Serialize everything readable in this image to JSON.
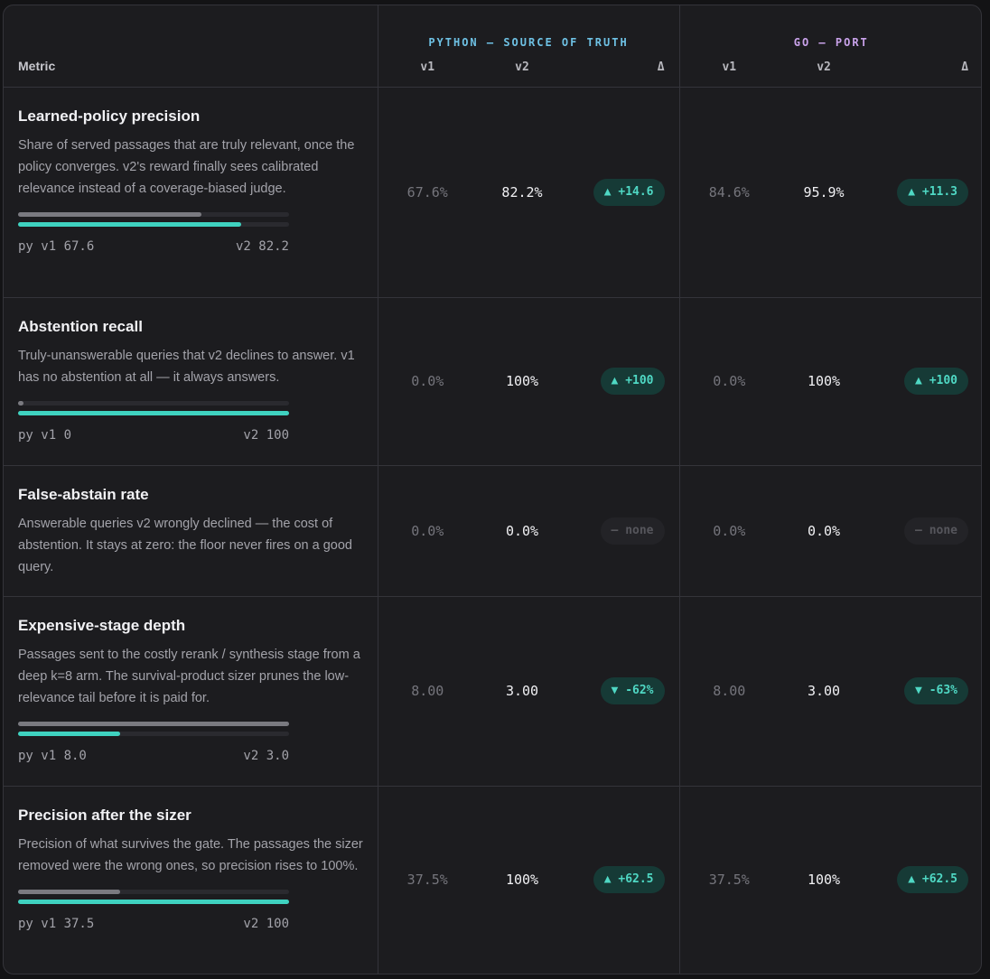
{
  "header": {
    "metric_label": "Metric",
    "python_group": "PYTHON — SOURCE OF TRUTH",
    "go_group": "GO — PORT",
    "v1": "v1",
    "v2": "v2",
    "delta": "Δ"
  },
  "rows": [
    {
      "title": "Learned-policy precision",
      "desc": "Share of served passages that are truly relevant, once the policy converges. v2's reward finally sees calibrated relevance instead of a coverage-biased judge.",
      "has_bars": true,
      "bar_v1_fraction": 0.676,
      "bar_v2_fraction": 0.822,
      "bar_label_left": "py v1 67.6",
      "bar_label_right": "v2 82.2",
      "py_v1": "67.6%",
      "py_v2": "82.2%",
      "py_delta": "▲ +14.6",
      "py_delta_kind": "up",
      "go_v1": "84.6%",
      "go_v2": "95.9%",
      "go_delta": "▲ +11.3",
      "go_delta_kind": "up"
    },
    {
      "title": "Abstention recall",
      "desc": "Truly-unanswerable queries that v2 declines to answer. v1 has no abstention at all — it always answers.",
      "has_bars": true,
      "bar_v1_fraction": 0.0,
      "bar_v2_fraction": 1.0,
      "bar_label_left": "py v1 0",
      "bar_label_right": "v2 100",
      "py_v1": "0.0%",
      "py_v2": "100%",
      "py_delta": "▲ +100",
      "py_delta_kind": "up",
      "go_v1": "0.0%",
      "go_v2": "100%",
      "go_delta": "▲ +100",
      "go_delta_kind": "up"
    },
    {
      "title": "False-abstain rate",
      "desc": "Answerable queries v2 wrongly declined — the cost of abstention. It stays at zero: the floor never fires on a good query.",
      "has_bars": false,
      "py_v1": "0.0%",
      "py_v2": "0.0%",
      "py_delta": "– none",
      "py_delta_kind": "none",
      "go_v1": "0.0%",
      "go_v2": "0.0%",
      "go_delta": "– none",
      "go_delta_kind": "none"
    },
    {
      "title": "Expensive-stage depth",
      "desc": "Passages sent to the costly rerank / synthesis stage from a deep k=8 arm. The survival-product sizer prunes the low-relevance tail before it is paid for.",
      "has_bars": true,
      "bar_v1_fraction": 1.0,
      "bar_v2_fraction": 0.375,
      "bar_label_left": "py v1 8.0",
      "bar_label_right": "v2 3.0",
      "py_v1": "8.00",
      "py_v2": "3.00",
      "py_delta": "▼ -62%",
      "py_delta_kind": "down",
      "go_v1": "8.00",
      "go_v2": "3.00",
      "go_delta": "▼ -63%",
      "go_delta_kind": "down"
    },
    {
      "title": "Precision after the sizer",
      "desc": "Precision of what survives the gate. The passages the sizer removed were the wrong ones, so precision rises to 100%.",
      "has_bars": true,
      "bar_v1_fraction": 0.375,
      "bar_v2_fraction": 1.0,
      "bar_label_left": "py v1 37.5",
      "bar_label_right": "v2 100",
      "py_v1": "37.5%",
      "py_v2": "100%",
      "py_delta": "▲ +62.5",
      "py_delta_kind": "up",
      "go_v1": "37.5%",
      "go_v2": "100%",
      "go_delta": "▲ +62.5",
      "go_delta_kind": "up"
    }
  ]
}
